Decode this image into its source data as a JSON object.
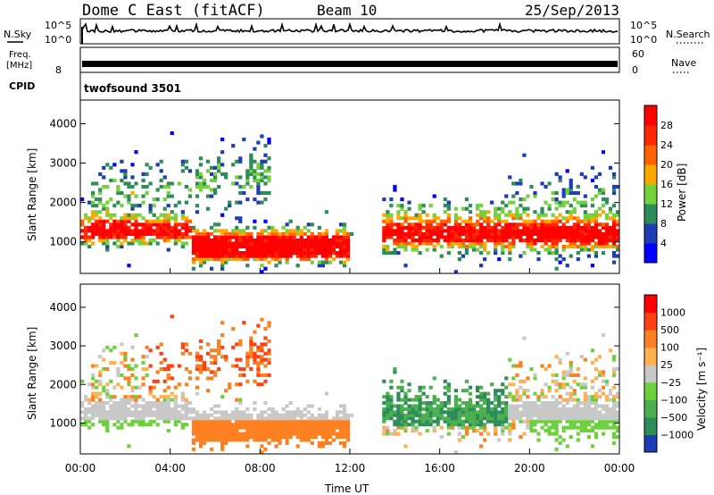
{
  "header": {
    "station": "Dome C East (fitACF)",
    "beam": "Beam 10",
    "date": "25/Sep/2013"
  },
  "side_labels": {
    "nsky": "N.Sky",
    "freq_line1": "Freq.",
    "freq_line2": "[MHz]",
    "cpid": "CPID",
    "nsearch": "N.Search",
    "nave": "Nave",
    "cpid_value": "twofsound 3501"
  },
  "chart_data": [
    {
      "panel": "noise",
      "type": "line",
      "left_ticks": [
        "10^5",
        "10^0"
      ],
      "right_ticks": [
        "10^5",
        "10^0"
      ],
      "series": [
        {
          "color": "#000000"
        }
      ]
    },
    {
      "panel": "frequency_nave",
      "type": "line",
      "left_ticks": [
        "8"
      ],
      "right_ticks": [
        "60",
        "0"
      ],
      "series": [
        {
          "color": "#000000"
        }
      ]
    },
    {
      "panel": "power",
      "type": "heatmap",
      "ylabel": "Slant Range [km]",
      "yticks": [
        1000,
        2000,
        3000,
        4000
      ],
      "ylim": [
        200,
        4600
      ],
      "xlim": [
        0,
        24
      ],
      "colorbar": {
        "label": "Power [dB]",
        "ticks": [
          "4",
          "8",
          "12",
          "16",
          "20",
          "24",
          "28"
        ],
        "colors": [
          "#0000ff",
          "#1e3cb4",
          "#2d8c5a",
          "#73d23c",
          "#ffa800",
          "#ff6400",
          "#ff2800",
          "#ff0000"
        ]
      }
    },
    {
      "panel": "velocity",
      "type": "heatmap",
      "ylabel": "Slant Range [km]",
      "yticks": [
        1000,
        2000,
        3000,
        4000
      ],
      "ylim": [
        200,
        4600
      ],
      "xlim": [
        0,
        24
      ],
      "xticks": [
        "00:00",
        "04:00",
        "08:00",
        "12:00",
        "16:00",
        "20:00",
        "00:00"
      ],
      "xlabel": "Time UT",
      "colorbar": {
        "label": "Velocity [m s⁻¹]",
        "ticks": [
          "1000",
          "500",
          "100",
          "25",
          "−25",
          "−100",
          "−500",
          "−1000"
        ],
        "colors": [
          "#1e3cb4",
          "#2d8c5a",
          "#4caf50",
          "#6cd23c",
          "#c8c8c8",
          "#ffb050",
          "#ff8020",
          "#ff4010",
          "#ff0000"
        ]
      }
    }
  ]
}
